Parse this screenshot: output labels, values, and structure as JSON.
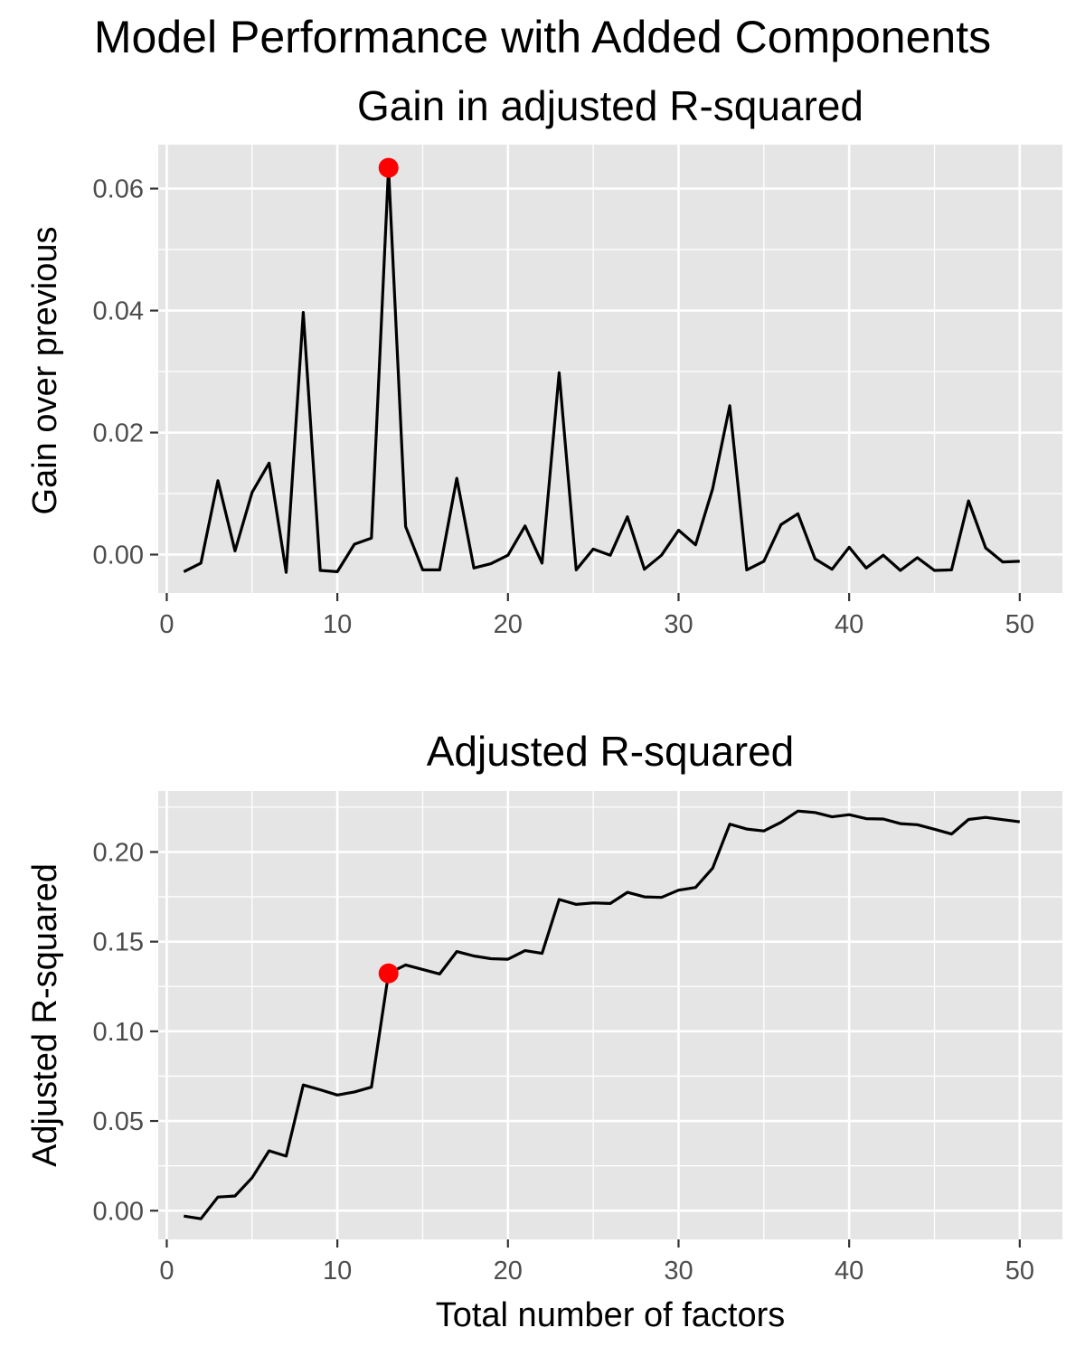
{
  "title": "Model Performance with Added Components",
  "colors": {
    "line": "#000000",
    "highlight": "#ff0000",
    "panel": "#e5e5e5"
  },
  "chart_data": [
    {
      "type": "line",
      "title": "Gain in adjusted R-squared",
      "xlabel": "",
      "ylabel": "Gain over previous",
      "xlim": [
        -0.5,
        52.5
      ],
      "ylim": [
        -0.0063,
        0.0672
      ],
      "x_ticks": [
        0,
        10,
        20,
        30,
        40,
        50
      ],
      "y_ticks": [
        0.0,
        0.02,
        0.04,
        0.06
      ],
      "x_tick_labels": [
        "0",
        "10",
        "20",
        "30",
        "40",
        "50"
      ],
      "y_tick_labels": [
        "0.00",
        "0.02",
        "0.04",
        "0.06"
      ],
      "grid": true,
      "series": [
        {
          "x": [
            1,
            2,
            3,
            4,
            5,
            6,
            7,
            8,
            9,
            10,
            11,
            12,
            13,
            14,
            15,
            16,
            17,
            18,
            19,
            20,
            21,
            22,
            23,
            24,
            25,
            26,
            27,
            28,
            29,
            30,
            31,
            32,
            33,
            34,
            35,
            36,
            37,
            38,
            39,
            40,
            41,
            42,
            43,
            44,
            45,
            46,
            47,
            48,
            49,
            50
          ],
          "values": [
            -0.0028,
            -0.0014,
            0.0121,
            0.0006,
            0.0102,
            0.015,
            -0.0029,
            0.0397,
            -0.0026,
            -0.0028,
            0.0017,
            0.0027,
            0.0634,
            0.0046,
            -0.0025,
            -0.0025,
            0.0125,
            -0.0022,
            -0.0015,
            -0.0001,
            0.0047,
            -0.0014,
            0.0298,
            -0.0025,
            0.0009,
            -0.0001,
            0.0062,
            -0.0024,
            -0.0001,
            0.004,
            0.0016,
            0.0108,
            0.0244,
            -0.0025,
            -0.0011,
            0.0049,
            0.0067,
            -0.0007,
            -0.0024,
            0.0012,
            -0.0022,
            -0.0001,
            -0.0026,
            -0.0005,
            -0.0026,
            -0.0025,
            0.0088,
            0.0011,
            -0.0012,
            -0.0011
          ]
        }
      ],
      "highlight": {
        "x": 13,
        "y": 0.0634
      }
    },
    {
      "type": "line",
      "title": "Adjusted R-squared",
      "xlabel": "Total number of factors",
      "ylabel": "Adjusted R-squared",
      "xlim": [
        -0.5,
        52.5
      ],
      "ylim": [
        -0.016,
        0.234
      ],
      "x_ticks": [
        0,
        10,
        20,
        30,
        40,
        50
      ],
      "y_ticks": [
        0.0,
        0.05,
        0.1,
        0.15,
        0.2
      ],
      "x_tick_labels": [
        "0",
        "10",
        "20",
        "30",
        "40",
        "50"
      ],
      "y_tick_labels": [
        "0.00",
        "0.05",
        "0.10",
        "0.15",
        "0.20"
      ],
      "grid": true,
      "series": [
        {
          "x": [
            1,
            2,
            3,
            4,
            5,
            6,
            7,
            8,
            9,
            10,
            11,
            12,
            13,
            14,
            15,
            16,
            17,
            18,
            19,
            20,
            21,
            22,
            23,
            24,
            25,
            26,
            27,
            28,
            29,
            30,
            31,
            32,
            33,
            34,
            35,
            36,
            37,
            38,
            39,
            40,
            41,
            42,
            43,
            44,
            45,
            46,
            47,
            48,
            49,
            50
          ],
          "values": [
            -0.003,
            -0.0045,
            0.0076,
            0.0082,
            0.0184,
            0.0334,
            0.0304,
            0.0701,
            0.0674,
            0.0645,
            0.0662,
            0.0689,
            0.1323,
            0.137,
            0.1345,
            0.132,
            0.1445,
            0.142,
            0.1405,
            0.1402,
            0.145,
            0.1435,
            0.1735,
            0.1708,
            0.1716,
            0.1713,
            0.1775,
            0.175,
            0.1747,
            0.1787,
            0.1802,
            0.191,
            0.2155,
            0.2128,
            0.2117,
            0.2165,
            0.2228,
            0.222,
            0.2196,
            0.2208,
            0.2186,
            0.2184,
            0.2158,
            0.2152,
            0.2127,
            0.21,
            0.2181,
            0.2193,
            0.218,
            0.2168
          ]
        }
      ],
      "highlight": {
        "x": 13,
        "y": 0.1323
      }
    }
  ]
}
